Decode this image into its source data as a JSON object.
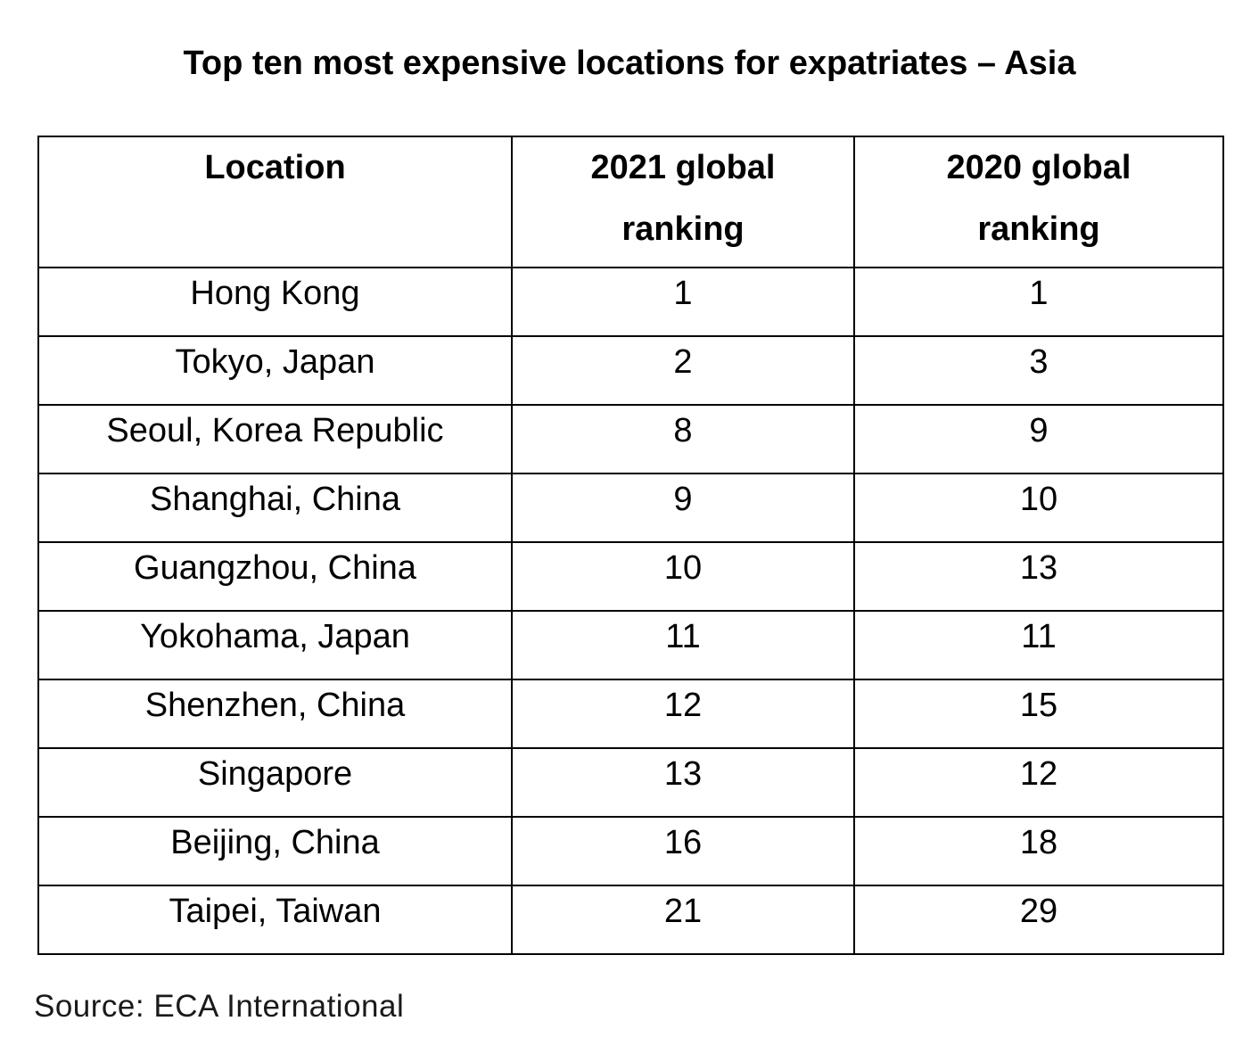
{
  "title": "Top ten most expensive locations for expatriates – Asia",
  "table": {
    "headers": [
      "Location",
      "2021 global ranking",
      "2020 global ranking"
    ],
    "rows": [
      [
        "Hong Kong",
        "1",
        "1"
      ],
      [
        "Tokyo, Japan",
        "2",
        "3"
      ],
      [
        "Seoul, Korea Republic",
        "8",
        "9"
      ],
      [
        "Shanghai, China",
        "9",
        "10"
      ],
      [
        "Guangzhou, China",
        "10",
        "13"
      ],
      [
        "Yokohama, Japan",
        "11",
        "11"
      ],
      [
        "Shenzhen, China",
        "12",
        "15"
      ],
      [
        "Singapore",
        "13",
        "12"
      ],
      [
        "Beijing, China",
        "16",
        "18"
      ],
      [
        "Taipei, Taiwan",
        "21",
        "29"
      ]
    ]
  },
  "source": "Source: ECA International"
}
